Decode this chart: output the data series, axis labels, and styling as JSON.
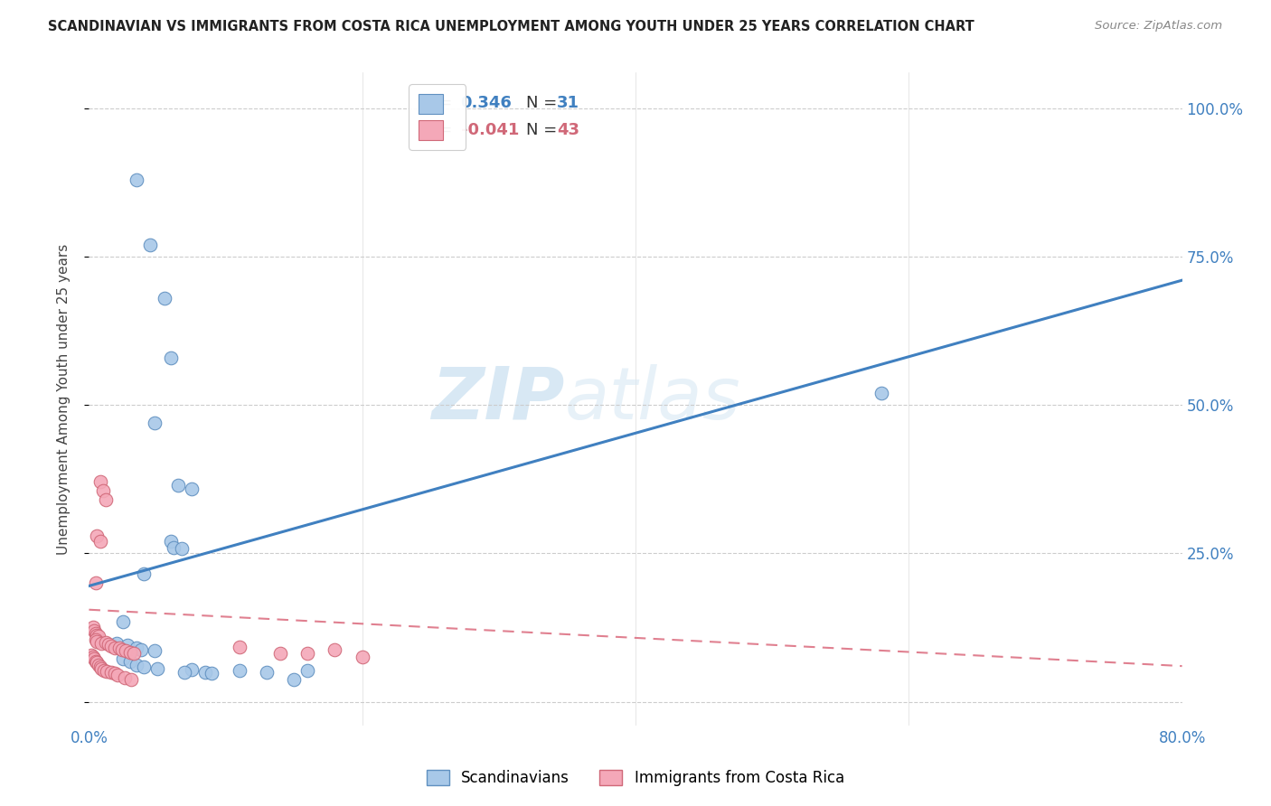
{
  "title": "SCANDINAVIAN VS IMMIGRANTS FROM COSTA RICA UNEMPLOYMENT AMONG YOUTH UNDER 25 YEARS CORRELATION CHART",
  "source": "Source: ZipAtlas.com",
  "ylabel": "Unemployment Among Youth under 25 years",
  "xlim": [
    0.0,
    0.8
  ],
  "ylim": [
    -0.04,
    1.06
  ],
  "xticks": [
    0.0,
    0.2,
    0.4,
    0.6,
    0.8
  ],
  "xticklabels": [
    "0.0%",
    "",
    "",
    "",
    "80.0%"
  ],
  "yticks": [
    0.0,
    0.25,
    0.5,
    0.75,
    1.0
  ],
  "yticklabels": [
    "",
    "25.0%",
    "50.0%",
    "75.0%",
    "100.0%"
  ],
  "legend_r_blue": "0.346",
  "legend_n_blue": "31",
  "legend_r_pink": "-0.041",
  "legend_n_pink": "43",
  "legend_label_blue": "Scandinavians",
  "legend_label_pink": "Immigrants from Costa Rica",
  "watermark_zip": "ZIP",
  "watermark_atlas": "atlas",
  "blue_color": "#a8c8e8",
  "pink_color": "#f4a8b8",
  "blue_edge_color": "#6090c0",
  "pink_edge_color": "#d06878",
  "blue_line_color": "#4080c0",
  "pink_line_color": "#e08090",
  "blue_scatter": [
    [
      0.035,
      0.88
    ],
    [
      0.045,
      0.77
    ],
    [
      0.055,
      0.68
    ],
    [
      0.06,
      0.58
    ],
    [
      0.048,
      0.47
    ],
    [
      0.065,
      0.365
    ],
    [
      0.075,
      0.358
    ],
    [
      0.06,
      0.27
    ],
    [
      0.062,
      0.26
    ],
    [
      0.068,
      0.258
    ],
    [
      0.04,
      0.215
    ],
    [
      0.025,
      0.135
    ],
    [
      0.02,
      0.098
    ],
    [
      0.028,
      0.095
    ],
    [
      0.035,
      0.09
    ],
    [
      0.038,
      0.087
    ],
    [
      0.048,
      0.086
    ],
    [
      0.025,
      0.072
    ],
    [
      0.03,
      0.068
    ],
    [
      0.035,
      0.062
    ],
    [
      0.04,
      0.058
    ],
    [
      0.05,
      0.056
    ],
    [
      0.075,
      0.054
    ],
    [
      0.07,
      0.05
    ],
    [
      0.085,
      0.05
    ],
    [
      0.09,
      0.048
    ],
    [
      0.11,
      0.052
    ],
    [
      0.13,
      0.05
    ],
    [
      0.15,
      0.038
    ],
    [
      0.16,
      0.052
    ],
    [
      0.58,
      0.52
    ]
  ],
  "pink_scatter": [
    [
      0.008,
      0.37
    ],
    [
      0.01,
      0.355
    ],
    [
      0.012,
      0.34
    ],
    [
      0.006,
      0.28
    ],
    [
      0.008,
      0.27
    ],
    [
      0.005,
      0.2
    ],
    [
      0.003,
      0.125
    ],
    [
      0.004,
      0.12
    ],
    [
      0.005,
      0.115
    ],
    [
      0.006,
      0.112
    ],
    [
      0.007,
      0.11
    ],
    [
      0.005,
      0.105
    ],
    [
      0.006,
      0.102
    ],
    [
      0.009,
      0.098
    ],
    [
      0.012,
      0.1
    ],
    [
      0.014,
      0.097
    ],
    [
      0.016,
      0.093
    ],
    [
      0.019,
      0.09
    ],
    [
      0.022,
      0.09
    ],
    [
      0.024,
      0.088
    ],
    [
      0.027,
      0.086
    ],
    [
      0.03,
      0.083
    ],
    [
      0.033,
      0.082
    ],
    [
      0.002,
      0.078
    ],
    [
      0.003,
      0.076
    ],
    [
      0.004,
      0.072
    ],
    [
      0.005,
      0.068
    ],
    [
      0.006,
      0.066
    ],
    [
      0.007,
      0.062
    ],
    [
      0.008,
      0.058
    ],
    [
      0.009,
      0.055
    ],
    [
      0.011,
      0.053
    ],
    [
      0.013,
      0.051
    ],
    [
      0.016,
      0.05
    ],
    [
      0.019,
      0.048
    ],
    [
      0.021,
      0.045
    ],
    [
      0.026,
      0.04
    ],
    [
      0.031,
      0.038
    ],
    [
      0.11,
      0.092
    ],
    [
      0.14,
      0.082
    ],
    [
      0.18,
      0.087
    ],
    [
      0.16,
      0.082
    ],
    [
      0.2,
      0.076
    ]
  ],
  "blue_trendline": [
    0.0,
    0.8,
    0.195,
    0.71
  ],
  "pink_trendline": [
    0.0,
    0.8,
    0.155,
    0.06
  ]
}
